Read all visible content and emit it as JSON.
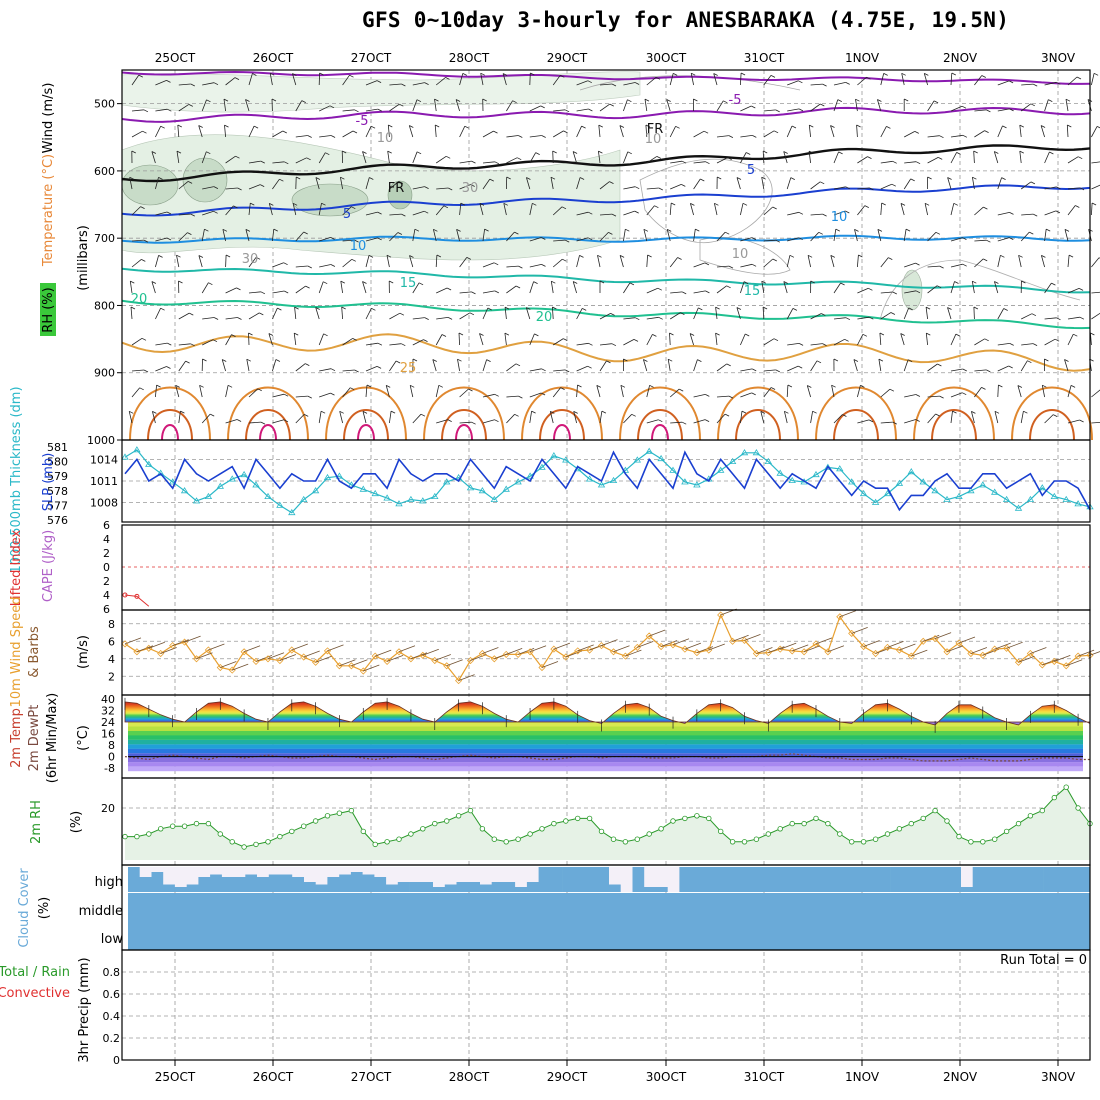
{
  "title": "GFS 0~10day 3-hourly for ANESBARAKA (4.75E, 19.5N)",
  "dates": [
    "25OCT",
    "26OCT",
    "27OCT",
    "28OCT",
    "29OCT",
    "30OCT",
    "31OCT",
    "1NOV",
    "2NOV",
    "3NOV"
  ],
  "panel_labels": {
    "p1_wind": "Wind (m/s)",
    "p1_temp": "Temperature (°C)",
    "p1_rh": "RH (%)",
    "p1_units": "(millibars)",
    "p2_thick": "1000-500mb Thickness (dm)",
    "p2_slp": "SLP (mb)",
    "p3_li": "Lifted Index",
    "p3_cape": "CAPE (J/kg)",
    "p4_wind": "10m Wind Speed",
    "p4_barbs": "& Barbs",
    "p4_unit": "(m/s)",
    "p5_temp": "2m Temp",
    "p5_dew": "2m DewPt",
    "p5_minmax": "(6hr Min/Max)",
    "p5_unit": "(°C)",
    "p6_rh": "2m RH",
    "p6_unit": "(%)",
    "p7_cloud": "Cloud Cover",
    "p7_unit": "(%)",
    "p8_total": "Total / Rain",
    "p8_conv": "Convective",
    "p8_precip": "3hr Precip (mm)",
    "run_total": "Run Total = 0"
  },
  "cloud_levels": [
    "high",
    "middle",
    "low"
  ],
  "colors": {
    "slp": "#1a3fd0",
    "thickness": "#2ab8c8",
    "wind_speed": "#e8a030",
    "rh": "#2a9a2a",
    "cloud": "#6aaad8",
    "temp_area": "#c8643c"
  },
  "chart_data": [
    {
      "type": "line",
      "name": "pressure-level cross section",
      "ylabel": "(millibars)",
      "ylim": [
        1000,
        450
      ],
      "y_ticks": [
        500,
        600,
        700,
        800,
        900,
        1000
      ],
      "isotherm_labels": [
        "-5",
        "-5",
        "FR",
        "FR",
        "5",
        "5",
        "10",
        "10",
        "15",
        "15",
        "20",
        "20",
        "25",
        "10",
        "10",
        "30",
        "30",
        "10"
      ]
    },
    {
      "type": "line",
      "name": "SLP and 1000-500mb thickness",
      "slp_ticks": [
        1008,
        1011,
        1014
      ],
      "thickness_ticks": [
        576,
        577,
        578,
        579,
        580,
        581
      ],
      "slp": [
        1012,
        1014,
        1011,
        1012,
        1010,
        1014,
        1012,
        1011,
        1012,
        1013,
        1010,
        1014,
        1012,
        1010,
        1012,
        1011,
        1011,
        1014,
        1011,
        1010,
        1012,
        1012,
        1010,
        1014,
        1012,
        1011,
        1012,
        1012,
        1011,
        1014,
        1012,
        1010,
        1013,
        1012,
        1011,
        1014,
        1012,
        1010,
        1013,
        1012,
        1011,
        1015,
        1012,
        1010,
        1014,
        1012,
        1010,
        1015,
        1012,
        1011,
        1014,
        1012,
        1010,
        1014,
        1012,
        1010,
        1012,
        1011,
        1010,
        1013,
        1011,
        1009,
        1011,
        1010,
        1010,
        1007,
        1009,
        1009,
        1011,
        1012,
        1010,
        1010,
        1012,
        1012,
        1010,
        1011,
        1012,
        1009,
        1011,
        1011,
        1010,
        1007
      ],
      "thickness": [
        580.3,
        580.8,
        579.8,
        579.2,
        578.6,
        578.0,
        577.3,
        577.6,
        578.3,
        578.8,
        579.1,
        578.4,
        577.6,
        577.0,
        576.5,
        577.4,
        578.0,
        578.9,
        579.0,
        578.4,
        578.1,
        577.8,
        577.5,
        577.1,
        577.4,
        577.3,
        577.6,
        578.6,
        578.9,
        578.2,
        578.0,
        577.4,
        578.1,
        578.6,
        579.0,
        579.6,
        580.4,
        580.1,
        579.5,
        578.8,
        578.4,
        578.7,
        579.4,
        580.1,
        580.7,
        580.2,
        579.4,
        578.6,
        578.4,
        578.8,
        579.4,
        580.0,
        580.6,
        580.6,
        580.0,
        579.2,
        578.7,
        578.6,
        579.1,
        579.6,
        579.5,
        578.6,
        577.8,
        577.2,
        577.8,
        578.5,
        579.3,
        578.6,
        578.0,
        577.4,
        577.6,
        578.0,
        578.4,
        577.9,
        577.4,
        576.8,
        577.4,
        578.2,
        577.6,
        577.4,
        577.1,
        576.9
      ]
    },
    {
      "type": "line",
      "name": "Lifted Index / CAPE",
      "ylim": [
        6,
        -6
      ],
      "y_ticks": [
        -6,
        -4,
        -2,
        0,
        2,
        4,
        6
      ],
      "lifted_index": [
        4,
        4.2,
        5.6,
        null,
        null,
        null,
        null,
        6
      ]
    },
    {
      "type": "line",
      "name": "10m wind speed",
      "ylabel": "(m/s)",
      "ylim": [
        1,
        10
      ],
      "y_ticks": [
        2,
        4,
        6,
        8
      ],
      "values": [
        5.7,
        4.8,
        5.2,
        4.6,
        5.5,
        5.9,
        4.0,
        5.0,
        3.0,
        2.7,
        4.8,
        3.7,
        4.0,
        3.8,
        5.0,
        4.2,
        3.6,
        4.9,
        3.2,
        3.2,
        2.6,
        4.3,
        3.7,
        4.8,
        4.0,
        4.4,
        3.8,
        3.2,
        1.5,
        3.8,
        4.6,
        4.0,
        4.5,
        4.5,
        4.8,
        3.0,
        5.1,
        4.2,
        4.9,
        5.0,
        5.5,
        4.8,
        4.3,
        5.3,
        6.6,
        5.4,
        5.6,
        5.1,
        4.7,
        5.0,
        9.0,
        6.0,
        6.1,
        4.6,
        4.7,
        5.1,
        4.9,
        4.8,
        5.7,
        4.8,
        8.8,
        6.9,
        5.4,
        4.6,
        5.3,
        5.0,
        4.3,
        6.0,
        6.3,
        4.8,
        5.8,
        4.6,
        4.4,
        5.1,
        5.2,
        3.6,
        4.6,
        3.3,
        3.7,
        3.2,
        4.3,
        4.4
      ]
    },
    {
      "type": "area",
      "name": "2m temperature and dewpoint",
      "ylabel": "(°C)",
      "ylim": [
        -10,
        40
      ],
      "y_ticks": [
        -8,
        0,
        8,
        16,
        24,
        32,
        40
      ],
      "temperature": [
        38,
        37,
        33,
        29,
        26,
        24,
        31,
        37,
        38,
        35,
        30,
        26,
        24,
        31,
        37,
        38,
        35,
        30,
        26,
        24,
        31,
        37,
        38,
        35,
        30,
        26,
        24,
        31,
        37,
        38,
        35,
        30,
        26,
        24,
        31,
        37,
        38,
        35,
        29,
        25,
        23,
        30,
        36,
        37,
        34,
        28,
        25,
        23,
        30,
        36,
        37,
        34,
        28,
        25,
        23,
        30,
        36,
        37,
        33,
        28,
        24,
        23,
        30,
        36,
        37,
        33,
        28,
        24,
        22,
        30,
        36,
        36,
        32,
        27,
        24,
        22,
        29,
        35,
        36,
        32,
        27,
        23
      ],
      "dewpoint": [
        0,
        -1,
        -2,
        0,
        1,
        0,
        -1,
        -2,
        0,
        0,
        -1,
        0,
        1,
        0,
        -1,
        -1,
        0,
        1,
        0,
        0,
        -1,
        -2,
        -1,
        0,
        0,
        -1,
        -2,
        -1,
        0,
        1,
        0,
        -1,
        0,
        0,
        -1,
        -2,
        -2,
        -1,
        0,
        0,
        -1,
        0,
        0,
        0,
        -1,
        -1,
        -1,
        0,
        0,
        -1,
        -1,
        0,
        0,
        0,
        1,
        1,
        2,
        1,
        0,
        -1,
        -1,
        -2,
        -2,
        -2,
        -1,
        -1,
        -2,
        -3,
        -3,
        -3,
        -2,
        -1,
        -2,
        -3,
        -3,
        -3,
        -2,
        -1,
        -1,
        -1,
        -2,
        -2
      ]
    },
    {
      "type": "area",
      "name": "2m relative humidity",
      "ylabel": "(%)",
      "ylim": [
        0,
        30
      ],
      "y_ticks": [
        20
      ],
      "values": [
        9,
        9,
        10,
        12,
        13,
        13,
        14,
        14,
        10,
        7,
        5,
        6,
        7,
        9,
        11,
        13,
        15,
        17,
        18,
        19,
        11,
        6,
        7,
        8,
        10,
        12,
        14,
        15,
        17,
        19,
        12,
        8,
        7,
        8,
        10,
        12,
        14,
        15,
        16,
        16,
        11,
        8,
        7,
        8,
        10,
        12,
        15,
        16,
        17,
        16,
        11,
        7,
        7,
        8,
        10,
        12,
        14,
        14,
        16,
        14,
        10,
        7,
        7,
        8,
        10,
        12,
        14,
        16,
        19,
        15,
        9,
        7,
        7,
        8,
        11,
        14,
        17,
        19,
        24,
        28,
        20,
        14
      ]
    },
    {
      "type": "bar",
      "name": "high cloud cover",
      "ylabel": "(%)",
      "ylim": [
        0,
        100
      ],
      "high": [
        100,
        60,
        80,
        30,
        20,
        30,
        60,
        70,
        60,
        60,
        70,
        60,
        70,
        70,
        60,
        40,
        30,
        60,
        70,
        80,
        70,
        60,
        30,
        40,
        40,
        40,
        20,
        30,
        40,
        40,
        30,
        40,
        40,
        20,
        40,
        100,
        100,
        100,
        100,
        100,
        100,
        30,
        0,
        100,
        20,
        20,
        0,
        100,
        100,
        100,
        100,
        100,
        100,
        100,
        100,
        100,
        100,
        100,
        100,
        100,
        100,
        100,
        100,
        100,
        100,
        100,
        100,
        100,
        100,
        100,
        100,
        20,
        100,
        100,
        100,
        100,
        100,
        100,
        100,
        100,
        100,
        100
      ],
      "middle": 100,
      "low": 100
    },
    {
      "type": "bar",
      "name": "3hr precipitation",
      "ylabel": "3hr Precip (mm)",
      "ylim": [
        0,
        1
      ],
      "y_ticks": [
        0,
        0.2,
        0.4,
        0.6,
        0.8
      ],
      "values": []
    }
  ]
}
